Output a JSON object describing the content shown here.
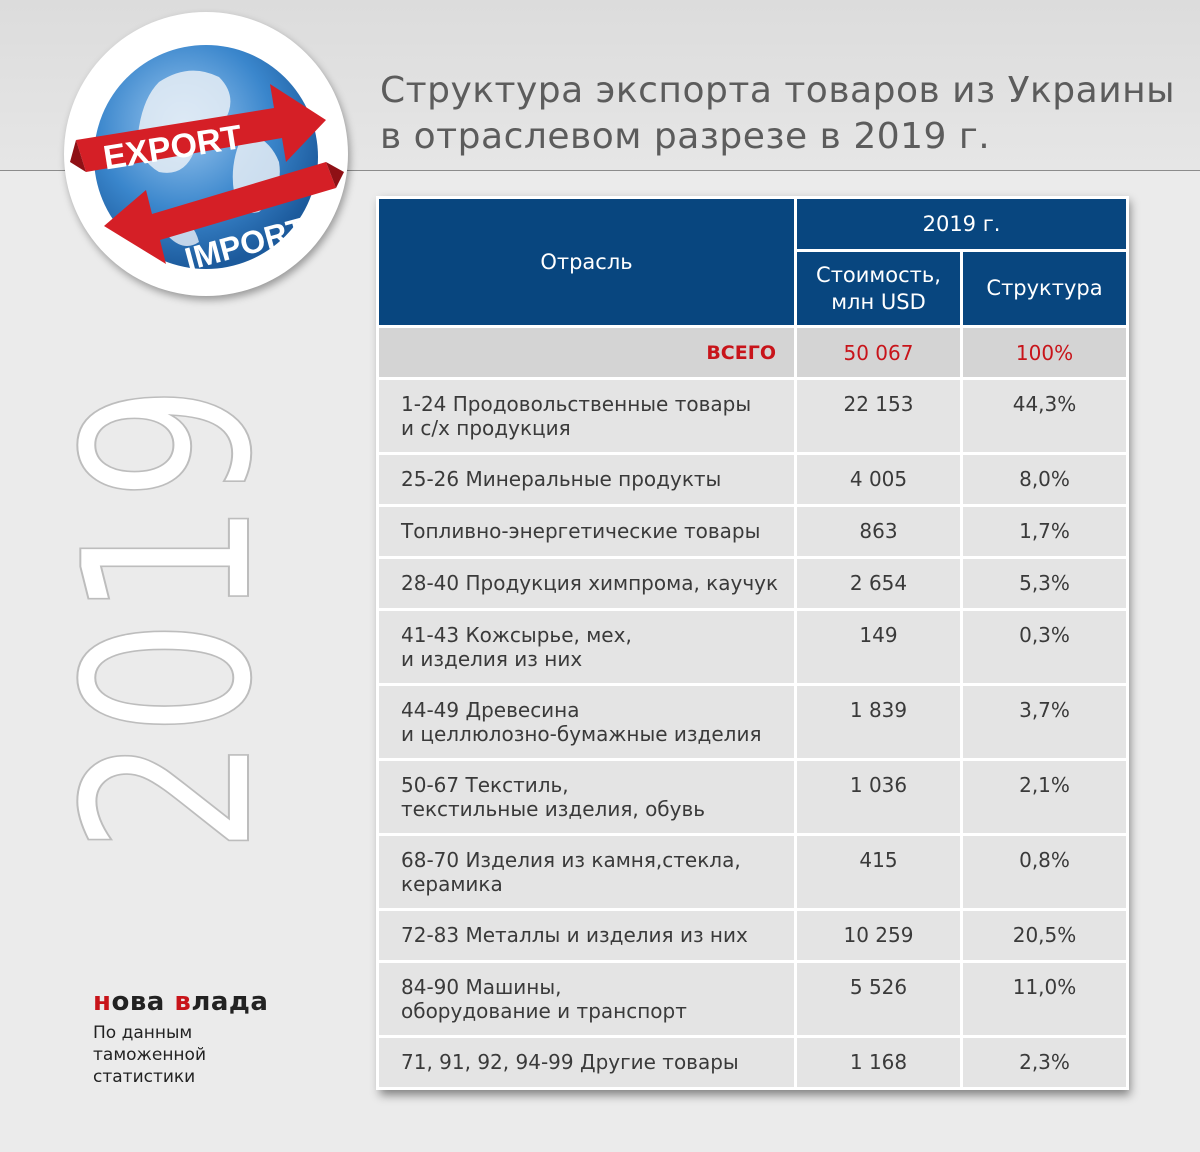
{
  "title": {
    "line1": "Структура экспорта товаров из Украины",
    "line2": "в отраслевом разрезе в 2019 г."
  },
  "logo": {
    "word_top": "EXPORT",
    "word_bottom": "IMPORT",
    "icon": "globe-with-arrows-icon",
    "colors": {
      "arrow": "#d51f26",
      "globe": "#2f7fc8",
      "land": "#e8eef6"
    }
  },
  "year_mark": "2019",
  "table": {
    "header_industry": "Отрасль",
    "header_year": "2019 г.",
    "header_value_line1": "Стоимость,",
    "header_value_line2": "млн USD",
    "header_share": "Структура"
  },
  "chart_data": {
    "type": "table",
    "columns": [
      "Отрасль",
      "Стоимость, млн USD",
      "Структура"
    ],
    "total": {
      "label": "ВСЕГО",
      "value": "50 067",
      "share": "100%"
    },
    "rows": [
      {
        "l1": "1-24 Продовольственные товары",
        "l2": "и с/х продукция",
        "value": "22 153",
        "share": "44,3%"
      },
      {
        "l1": "25-26 Минеральные продукты",
        "l2": "",
        "value": "4 005",
        "share": "8,0%"
      },
      {
        "l1": "Топливно-энергетические товары",
        "l2": "",
        "value": "863",
        "share": "1,7%"
      },
      {
        "l1": "28-40 Продукция химпрома, каучук",
        "l2": "",
        "value": "2 654",
        "share": "5,3%"
      },
      {
        "l1": "41-43 Кожсырье, мех,",
        "l2": "и изделия из них",
        "value": "149",
        "share": "0,3%"
      },
      {
        "l1": "44-49 Древесина",
        "l2": "и целлюлозно-бумажные изделия",
        "value": "1 839",
        "share": "3,7%"
      },
      {
        "l1": "50-67 Текстиль,",
        "l2": "текстильные изделия, обувь",
        "value": "1 036",
        "share": "2,1%"
      },
      {
        "l1": "68-70 Изделия из камня,стекла,",
        "l2": "керамика",
        "value": "415",
        "share": "0,8%"
      },
      {
        "l1": "72-83 Металлы и изделия из них",
        "l2": "",
        "value": "10 259",
        "share": "20,5%"
      },
      {
        "l1": "84-90 Машины,",
        "l2": "оборудование и транспорт",
        "value": "5 526",
        "share": "11,0%"
      },
      {
        "l1": "71, 91, 92, 94-99 Другие товары",
        "l2": "",
        "value": "1 168",
        "share": "2,3%"
      }
    ]
  },
  "brand": {
    "part1": "н",
    "part2": "ова ",
    "part3": "в",
    "part4": "лада"
  },
  "source": {
    "line1": "По данным",
    "line2": "таможенной",
    "line3": "статистики"
  }
}
